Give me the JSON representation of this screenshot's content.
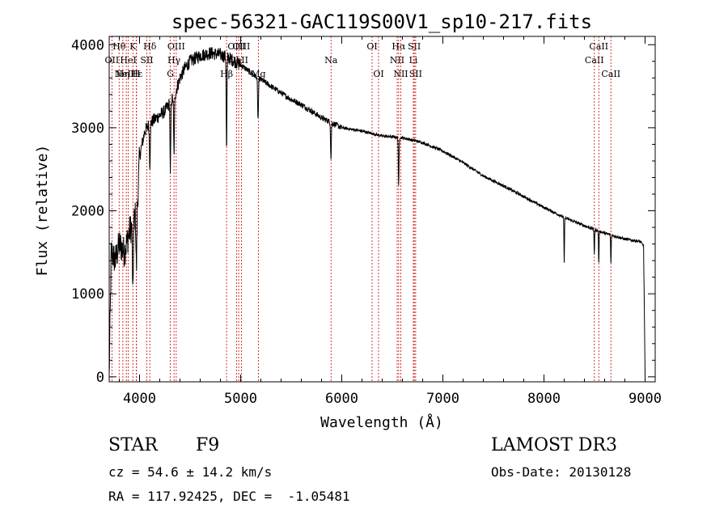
{
  "chart_data": {
    "type": "line",
    "title": "spec-56321-GAC119S00V1_sp10-217.fits",
    "xlabel": "Wavelength (Å)",
    "ylabel": "Flux (relative)",
    "xlim": [
      3700,
      9100
    ],
    "ylim": [
      -60,
      4100
    ],
    "xticks": [
      4000,
      5000,
      6000,
      7000,
      8000,
      9000
    ],
    "yticks": [
      0,
      1000,
      2000,
      3000,
      4000
    ],
    "line_color": "#000000",
    "marker_color": "#cc0000",
    "continuum": {
      "x": [
        3700,
        3720,
        3760,
        3800,
        3850,
        3900,
        3950,
        3980,
        4000,
        4050,
        4100,
        4150,
        4200,
        4250,
        4300,
        4350,
        4400,
        4450,
        4500,
        4600,
        4700,
        4800,
        4900,
        5000,
        5100,
        5200,
        5300,
        5400,
        5500,
        5600,
        5800,
        6000,
        6200,
        6400,
        6600,
        6800,
        7000,
        7200,
        7400,
        7600,
        7800,
        8000,
        8200,
        8400,
        8600,
        8800,
        8950,
        8985,
        9000
      ],
      "y": [
        0,
        1500,
        1400,
        1600,
        1500,
        1750,
        1900,
        2100,
        2650,
        2950,
        3050,
        3100,
        3150,
        3200,
        3300,
        3400,
        3600,
        3720,
        3800,
        3870,
        3900,
        3880,
        3830,
        3760,
        3660,
        3580,
        3500,
        3420,
        3340,
        3280,
        3120,
        3000,
        2960,
        2900,
        2880,
        2820,
        2720,
        2580,
        2420,
        2300,
        2170,
        2040,
        1920,
        1820,
        1730,
        1660,
        1630,
        1580,
        0
      ]
    },
    "absorption_features": [
      {
        "center": 3934,
        "depth": 900,
        "width": 6
      },
      {
        "center": 3969,
        "depth": 700,
        "width": 6
      },
      {
        "center": 4102,
        "depth": 500,
        "width": 6
      },
      {
        "center": 4305,
        "depth": 900,
        "width": 5
      },
      {
        "center": 4341,
        "depth": 700,
        "width": 6
      },
      {
        "center": 4861,
        "depth": 1150,
        "width": 5
      },
      {
        "center": 5172,
        "depth": 500,
        "width": 6
      },
      {
        "center": 5893,
        "depth": 450,
        "width": 5
      },
      {
        "center": 6563,
        "depth": 600,
        "width": 5
      },
      {
        "center": 8200,
        "depth": 550,
        "width": 4
      },
      {
        "center": 8498,
        "depth": 300,
        "width": 4
      },
      {
        "center": 8542,
        "depth": 400,
        "width": 4
      },
      {
        "center": 8662,
        "depth": 350,
        "width": 4
      }
    ],
    "line_markers": [
      {
        "wavelength": 3798,
        "label": "Hθ",
        "row": 1
      },
      {
        "wavelength": 3835,
        "label": "Hη",
        "row": 3
      },
      {
        "wavelength": 3727,
        "label": "OII",
        "row": 2
      },
      {
        "wavelength": 3869,
        "label": "NeIII",
        "row": 3
      },
      {
        "wavelength": 3889,
        "label": "HeI",
        "row": 2
      },
      {
        "wavelength": 3934,
        "label": "K",
        "row": 1
      },
      {
        "wavelength": 3969,
        "label": "H",
        "row": 3
      },
      {
        "wavelength": 3970,
        "label": "Hε",
        "row": 3
      },
      {
        "wavelength": 4072,
        "label": "SII",
        "row": 2
      },
      {
        "wavelength": 4102,
        "label": "Hδ",
        "row": 1
      },
      {
        "wavelength": 4305,
        "label": "G",
        "row": 3
      },
      {
        "wavelength": 4341,
        "label": "Hγ",
        "row": 2
      },
      {
        "wavelength": 4363,
        "label": "OIII",
        "row": 1
      },
      {
        "wavelength": 4861,
        "label": "Hβ",
        "row": 3
      },
      {
        "wavelength": 4959,
        "label": "OIII",
        "row": 1
      },
      {
        "wavelength": 5007,
        "label": "OIII",
        "row": 1
      },
      {
        "wavelength": 4981,
        "label": "CaII",
        "row": 2
      },
      {
        "wavelength": 5175,
        "label": "Mg",
        "row": 3
      },
      {
        "wavelength": 5894,
        "label": "Na",
        "row": 2
      },
      {
        "wavelength": 6300,
        "label": "OI",
        "row": 1
      },
      {
        "wavelength": 6364,
        "label": "OI",
        "row": 3
      },
      {
        "wavelength": 6548,
        "label": "NII",
        "row": 2
      },
      {
        "wavelength": 6563,
        "label": "Hα",
        "row": 1
      },
      {
        "wavelength": 6584,
        "label": "NII",
        "row": 3
      },
      {
        "wavelength": 6708,
        "label": "Li",
        "row": 2
      },
      {
        "wavelength": 6717,
        "label": "SII",
        "row": 1
      },
      {
        "wavelength": 6731,
        "label": "SII",
        "row": 3
      },
      {
        "wavelength": 8498,
        "label": "CaII",
        "row": 2
      },
      {
        "wavelength": 8542,
        "label": "CaII",
        "row": 1
      },
      {
        "wavelength": 8662,
        "label": "CaII",
        "row": 3
      }
    ]
  },
  "info": {
    "class": "STAR",
    "subclass": "F9",
    "survey": "LAMOST DR3",
    "redshift_line": "cz = 54.6 ± 14.2 km/s",
    "obs_date_line": "Obs-Date: 20130128",
    "coords_line": "RA = 117.92425, DEC =  -1.05481"
  }
}
